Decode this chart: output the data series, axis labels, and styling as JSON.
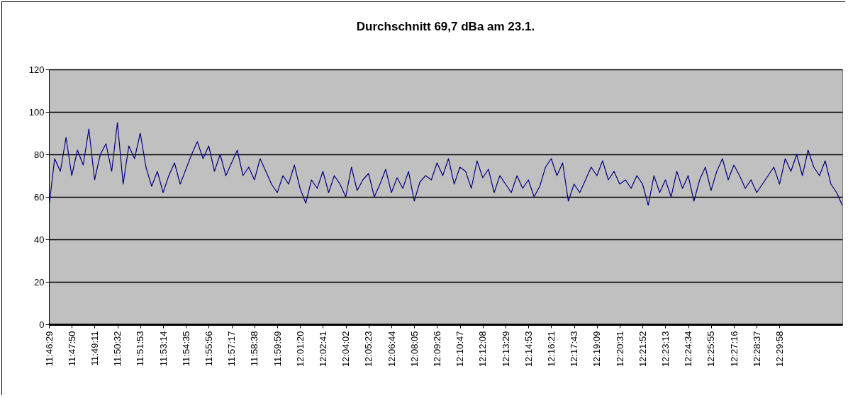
{
  "chart_data": {
    "type": "line",
    "title": "Durchschnitt 69,7 dBa am 23.1.",
    "categories": [
      "11:46:29",
      null,
      null,
      null,
      "11:47:50",
      null,
      null,
      null,
      "11:49:11",
      null,
      null,
      null,
      "11:50:32",
      null,
      null,
      null,
      "11:51:53",
      null,
      null,
      null,
      "11:53:14",
      null,
      null,
      null,
      "11:54:35",
      null,
      null,
      null,
      "11:55:56",
      null,
      null,
      null,
      "11:57:17",
      null,
      null,
      null,
      "11:58:38",
      null,
      null,
      null,
      "11:59:59",
      null,
      null,
      null,
      "12:01:20",
      null,
      null,
      null,
      "12:02:41",
      null,
      null,
      null,
      "12:04:02",
      null,
      null,
      null,
      "12:05:23",
      null,
      null,
      null,
      "12:06:44",
      null,
      null,
      null,
      "12:08:05",
      null,
      null,
      null,
      "12:09:26",
      null,
      null,
      null,
      "12:10:47",
      null,
      null,
      null,
      "12:12:08",
      null,
      null,
      null,
      "12:13:29",
      null,
      null,
      null,
      "12:14:53",
      null,
      null,
      null,
      "12:16:21",
      null,
      null,
      null,
      "12:17:43",
      null,
      null,
      null,
      "12:19:09",
      null,
      null,
      null,
      "12:20:31",
      null,
      null,
      null,
      "12:21:52",
      null,
      null,
      null,
      "12:23:13",
      null,
      null,
      null,
      "12:24:34",
      null,
      null,
      null,
      "12:25:55",
      null,
      null,
      null,
      "12:27:16",
      null,
      null,
      null,
      "12:28:37",
      null,
      null,
      null,
      "12:29:58",
      null,
      null,
      null,
      null,
      null,
      null,
      null,
      null,
      null,
      null,
      null
    ],
    "series": [
      {
        "color": "#000080",
        "values": [
          55,
          78,
          72,
          88,
          70,
          82,
          75,
          92,
          68,
          80,
          85,
          72,
          95,
          66,
          84,
          78,
          90,
          74,
          65,
          72,
          62,
          70,
          76,
          66,
          73,
          80,
          86,
          78,
          84,
          72,
          80,
          70,
          76,
          82,
          70,
          74,
          68,
          78,
          72,
          66,
          62,
          70,
          66,
          75,
          64,
          57,
          68,
          64,
          72,
          62,
          70,
          66,
          60,
          74,
          63,
          68,
          71,
          60,
          66,
          73,
          62,
          69,
          64,
          72,
          58,
          67,
          70,
          68,
          76,
          70,
          78,
          66,
          74,
          72,
          64,
          77,
          69,
          73,
          62,
          70,
          66,
          62,
          70,
          64,
          68,
          60,
          65,
          74,
          78,
          70,
          76,
          58,
          66,
          62,
          68,
          74,
          70,
          77,
          68,
          72,
          66,
          68,
          64,
          70,
          66,
          56,
          70,
          62,
          68,
          60,
          72,
          64,
          70,
          58,
          68,
          74,
          63,
          72,
          78,
          68,
          75,
          70,
          64,
          68,
          62,
          66,
          70,
          74,
          66,
          78,
          72,
          80,
          70,
          82,
          74,
          70,
          77,
          66,
          62,
          56
        ]
      }
    ],
    "ylim": [
      0,
      120
    ],
    "yticks": [
      0,
      20,
      40,
      60,
      80,
      100,
      120
    ],
    "grid": "y",
    "legend": false,
    "marker": "none",
    "line_style": "solid"
  }
}
